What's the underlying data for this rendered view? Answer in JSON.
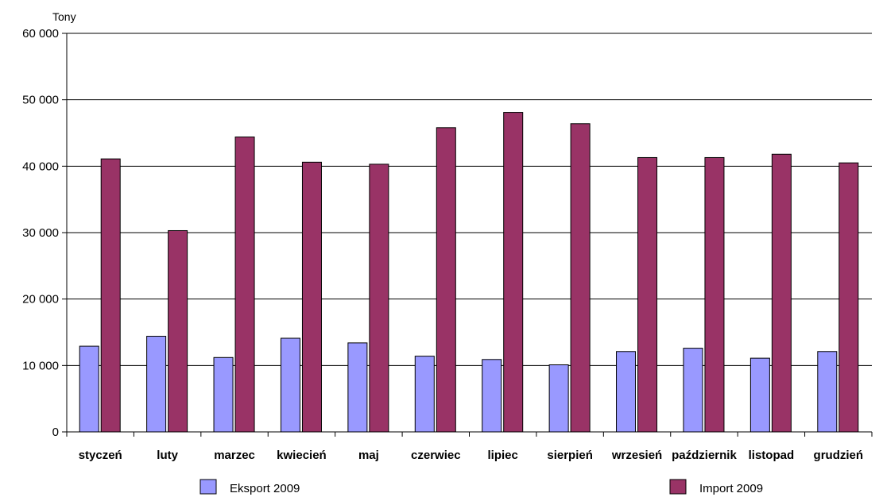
{
  "chart_data": {
    "type": "bar",
    "ylabel": "Tony",
    "ylim": [
      0,
      60000
    ],
    "yticks": [
      0,
      10000,
      20000,
      30000,
      40000,
      50000,
      60000
    ],
    "ytick_labels": [
      "0",
      "10 000",
      "20 000",
      "30 000",
      "40 000",
      "50 000",
      "60 000"
    ],
    "grid": true,
    "legend_position": "bottom",
    "categories": [
      "styczeń",
      "luty",
      "marzec",
      "kwiecień",
      "maj",
      "czerwiec",
      "lipiec",
      "sierpień",
      "wrzesień",
      "październik",
      "listopad",
      "grudzień"
    ],
    "series": [
      {
        "name": "Eksport 2009",
        "color": "#9999ff",
        "values": [
          12900,
          14400,
          11200,
          14100,
          13400,
          11400,
          10900,
          10100,
          12100,
          12600,
          11100,
          12100
        ]
      },
      {
        "name": "Import 2009",
        "color": "#993366",
        "values": [
          41100,
          30300,
          44400,
          40600,
          40300,
          45800,
          48100,
          46400,
          41300,
          41300,
          41800,
          40500
        ]
      }
    ]
  }
}
